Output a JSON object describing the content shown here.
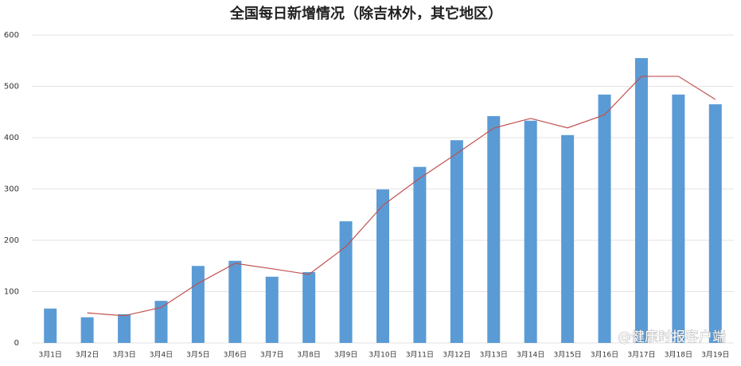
{
  "chart_data": {
    "type": "bar",
    "title": "全国每日新增情况（除吉林外，其它地区）",
    "categories": [
      "3月1日",
      "3月2日",
      "3月3日",
      "3月4日",
      "3月5日",
      "3月6日",
      "3月7日",
      "3月8日",
      "3月9日",
      "3月10日",
      "3月11日",
      "3月12日",
      "3月13日",
      "3月14日",
      "3月15日",
      "3月16日",
      "3月17日",
      "3月18日",
      "3月19日"
    ],
    "series": [
      {
        "type": "bar",
        "color": "#5b9bd5",
        "values": [
          67,
          50,
          56,
          82,
          150,
          160,
          129,
          138,
          237,
          299,
          343,
          395,
          442,
          433,
          405,
          484,
          555,
          484,
          465
        ]
      },
      {
        "type": "line",
        "color": "#c0504d",
        "values": [
          null,
          58.5,
          53,
          69,
          116,
          155,
          144.5,
          133.5,
          187.5,
          268,
          321,
          369,
          418.5,
          437.5,
          419,
          444.5,
          519.5,
          519.5,
          474.5
        ]
      }
    ],
    "ylim": [
      0,
      600
    ],
    "yticks": [
      0,
      100,
      200,
      300,
      400,
      500,
      600
    ],
    "grid": true,
    "annotation": "@健康时报客户端"
  }
}
